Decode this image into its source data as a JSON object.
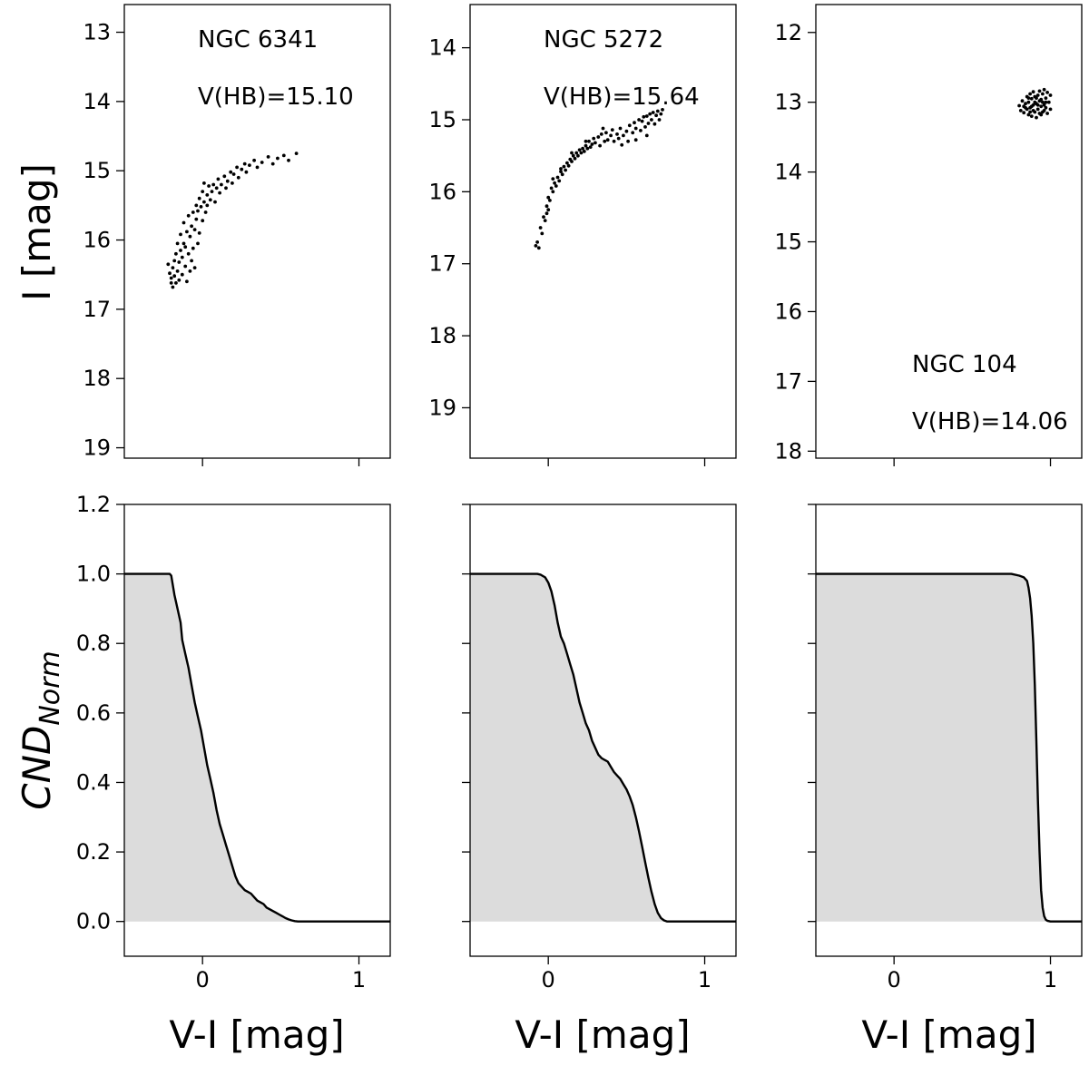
{
  "figure": {
    "ylabel_top": "I [mag]",
    "ylabel_bottom_main": "CND",
    "ylabel_bottom_sub": "Norm",
    "xlabel": "V-I [mag]"
  },
  "chart_data": [
    {
      "type": "scatter",
      "cluster": "NGC 6341",
      "annotation": "V(HB)=15.10",
      "xlim": [
        -0.5,
        1.2
      ],
      "ylim": [
        19.15,
        12.6
      ],
      "y_inverted": true,
      "x_ticks": [
        0,
        1
      ],
      "y_ticks": [
        13,
        14,
        15,
        16,
        17,
        18,
        19
      ],
      "points": [
        [
          -0.22,
          16.35
        ],
        [
          -0.21,
          16.48
        ],
        [
          -0.2,
          16.62
        ],
        [
          -0.2,
          16.55
        ],
        [
          -0.19,
          16.68
        ],
        [
          -0.19,
          16.4
        ],
        [
          -0.18,
          16.52
        ],
        [
          -0.18,
          16.3
        ],
        [
          -0.17,
          16.62
        ],
        [
          -0.17,
          16.2
        ],
        [
          -0.16,
          16.45
        ],
        [
          -0.16,
          16.05
        ],
        [
          -0.15,
          16.58
        ],
        [
          -0.15,
          16.32
        ],
        [
          -0.14,
          16.15
        ],
        [
          -0.14,
          15.92
        ],
        [
          -0.13,
          16.5
        ],
        [
          -0.13,
          16.25
        ],
        [
          -0.12,
          16.05
        ],
        [
          -0.12,
          15.75
        ],
        [
          -0.11,
          16.38
        ],
        [
          -0.11,
          16.1
        ],
        [
          -0.1,
          15.88
        ],
        [
          -0.1,
          16.6
        ],
        [
          -0.09,
          16.2
        ],
        [
          -0.09,
          15.65
        ],
        [
          -0.08,
          16.45
        ],
        [
          -0.08,
          15.95
        ],
        [
          -0.07,
          15.8
        ],
        [
          -0.07,
          16.3
        ],
        [
          -0.06,
          15.6
        ],
        [
          -0.06,
          16.12
        ],
        [
          -0.05,
          15.85
        ],
        [
          -0.05,
          16.4
        ],
        [
          -0.04,
          15.7
        ],
        [
          -0.04,
          15.5
        ],
        [
          -0.03,
          16.05
        ],
        [
          -0.03,
          15.58
        ],
        [
          -0.02,
          15.4
        ],
        [
          -0.02,
          15.9
        ],
        [
          -0.01,
          15.52
        ],
        [
          0.0,
          15.3
        ],
        [
          0.0,
          15.72
        ],
        [
          0.01,
          15.45
        ],
        [
          0.01,
          15.18
        ],
        [
          0.02,
          15.6
        ],
        [
          0.03,
          15.35
        ],
        [
          0.03,
          15.5
        ],
        [
          0.04,
          15.22
        ],
        [
          0.05,
          15.42
        ],
        [
          0.06,
          15.3
        ],
        [
          0.07,
          15.2
        ],
        [
          0.08,
          15.45
        ],
        [
          0.09,
          15.25
        ],
        [
          0.1,
          15.12
        ],
        [
          0.11,
          15.32
        ],
        [
          0.12,
          15.2
        ],
        [
          0.14,
          15.08
        ],
        [
          0.15,
          15.25
        ],
        [
          0.16,
          15.15
        ],
        [
          0.18,
          15.02
        ],
        [
          0.19,
          15.18
        ],
        [
          0.2,
          15.05
        ],
        [
          0.22,
          14.95
        ],
        [
          0.23,
          15.1
        ],
        [
          0.25,
          14.98
        ],
        [
          0.27,
          14.9
        ],
        [
          0.28,
          15.02
        ],
        [
          0.3,
          14.92
        ],
        [
          0.33,
          14.85
        ],
        [
          0.35,
          14.95
        ],
        [
          0.38,
          14.88
        ],
        [
          0.42,
          14.8
        ],
        [
          0.45,
          14.9
        ],
        [
          0.48,
          14.82
        ],
        [
          0.52,
          14.78
        ],
        [
          0.55,
          14.85
        ],
        [
          0.6,
          14.75
        ]
      ]
    },
    {
      "type": "scatter",
      "cluster": "NGC 5272",
      "annotation": "V(HB)=15.64",
      "xlim": [
        -0.5,
        1.2
      ],
      "ylim": [
        19.7,
        13.4
      ],
      "y_inverted": true,
      "x_ticks": [
        0,
        1
      ],
      "y_ticks": [
        14,
        15,
        16,
        17,
        18,
        19
      ],
      "points": [
        [
          -0.08,
          16.75
        ],
        [
          -0.07,
          16.7
        ],
        [
          -0.06,
          16.78
        ],
        [
          -0.05,
          16.5
        ],
        [
          -0.04,
          16.58
        ],
        [
          -0.03,
          16.35
        ],
        [
          -0.02,
          16.4
        ],
        [
          -0.01,
          16.2
        ],
        [
          0.0,
          16.25
        ],
        [
          0.0,
          16.08
        ],
        [
          0.01,
          16.12
        ],
        [
          0.02,
          15.95
        ],
        [
          0.03,
          16.0
        ],
        [
          0.04,
          15.88
        ],
        [
          0.05,
          15.92
        ],
        [
          0.06,
          15.8
        ],
        [
          0.07,
          15.85
        ],
        [
          0.08,
          15.72
        ],
        [
          0.09,
          15.76
        ],
        [
          0.1,
          15.65
        ],
        [
          0.11,
          15.7
        ],
        [
          0.12,
          15.6
        ],
        [
          0.13,
          15.64
        ],
        [
          0.14,
          15.55
        ],
        [
          0.15,
          15.58
        ],
        [
          0.16,
          15.5
        ],
        [
          0.17,
          15.54
        ],
        [
          0.18,
          15.46
        ],
        [
          0.19,
          15.5
        ],
        [
          0.2,
          15.42
        ],
        [
          0.21,
          15.46
        ],
        [
          0.22,
          15.4
        ],
        [
          0.23,
          15.44
        ],
        [
          0.24,
          15.36
        ],
        [
          0.25,
          15.4
        ],
        [
          0.26,
          15.3
        ],
        [
          0.27,
          15.38
        ],
        [
          0.28,
          15.34
        ],
        [
          0.29,
          15.26
        ],
        [
          0.3,
          15.32
        ],
        [
          0.32,
          15.24
        ],
        [
          0.33,
          15.36
        ],
        [
          0.34,
          15.2
        ],
        [
          0.36,
          15.3
        ],
        [
          0.37,
          15.18
        ],
        [
          0.38,
          15.28
        ],
        [
          0.4,
          15.22
        ],
        [
          0.41,
          15.14
        ],
        [
          0.42,
          15.3
        ],
        [
          0.44,
          15.2
        ],
        [
          0.45,
          15.26
        ],
        [
          0.46,
          15.12
        ],
        [
          0.48,
          15.22
        ],
        [
          0.5,
          15.16
        ],
        [
          0.51,
          15.3
        ],
        [
          0.52,
          15.08
        ],
        [
          0.54,
          15.18
        ],
        [
          0.55,
          15.04
        ],
        [
          0.56,
          15.12
        ],
        [
          0.58,
          15.0
        ],
        [
          0.59,
          15.15
        ],
        [
          0.6,
          15.02
        ],
        [
          0.61,
          14.96
        ],
        [
          0.62,
          15.1
        ],
        [
          0.63,
          14.95
        ],
        [
          0.64,
          15.05
        ],
        [
          0.65,
          14.92
        ],
        [
          0.66,
          15.0
        ],
        [
          0.67,
          14.9
        ],
        [
          0.68,
          15.06
        ],
        [
          0.69,
          14.94
        ],
        [
          0.7,
          14.88
        ],
        [
          0.71,
          15.0
        ],
        [
          0.72,
          14.92
        ],
        [
          0.73,
          14.86
        ],
        [
          -0.01,
          16.3
        ],
        [
          0.03,
          15.82
        ],
        [
          0.08,
          15.68
        ],
        [
          0.15,
          15.46
        ],
        [
          0.24,
          15.3
        ],
        [
          0.35,
          15.12
        ],
        [
          0.47,
          15.35
        ],
        [
          0.56,
          15.28
        ],
        [
          0.63,
          15.22
        ]
      ]
    },
    {
      "type": "scatter",
      "cluster": "NGC 104",
      "annotation": "V(HB)=14.06",
      "xlim": [
        -0.5,
        1.2
      ],
      "ylim": [
        18.1,
        11.6
      ],
      "y_inverted": true,
      "x_ticks": [
        0,
        1
      ],
      "y_ticks": [
        12,
        13,
        14,
        15,
        16,
        17,
        18
      ],
      "points": [
        [
          0.8,
          13.05
        ],
        [
          0.81,
          13.12
        ],
        [
          0.82,
          12.98
        ],
        [
          0.83,
          13.15
        ],
        [
          0.84,
          13.02
        ],
        [
          0.85,
          12.92
        ],
        [
          0.85,
          13.1
        ],
        [
          0.86,
          13.18
        ],
        [
          0.86,
          13.0
        ],
        [
          0.87,
          12.88
        ],
        [
          0.87,
          13.08
        ],
        [
          0.88,
          13.2
        ],
        [
          0.88,
          12.95
        ],
        [
          0.89,
          13.04
        ],
        [
          0.89,
          12.85
        ],
        [
          0.9,
          13.14
        ],
        [
          0.9,
          12.92
        ],
        [
          0.91,
          13.02
        ],
        [
          0.91,
          13.22
        ],
        [
          0.92,
          12.9
        ],
        [
          0.92,
          13.1
        ],
        [
          0.93,
          12.98
        ],
        [
          0.93,
          12.84
        ],
        [
          0.94,
          13.06
        ],
        [
          0.94,
          13.18
        ],
        [
          0.95,
          12.88
        ],
        [
          0.95,
          13.0
        ],
        [
          0.96,
          13.12
        ],
        [
          0.96,
          12.82
        ],
        [
          0.97,
          12.94
        ],
        [
          0.97,
          13.08
        ],
        [
          0.98,
          13.16
        ],
        [
          0.98,
          12.86
        ],
        [
          0.99,
          13.0
        ],
        [
          1.0,
          12.9
        ],
        [
          1.0,
          13.1
        ],
        [
          0.84,
          13.08
        ],
        [
          0.86,
          12.94
        ],
        [
          0.88,
          13.06
        ],
        [
          0.9,
          13.0
        ],
        [
          0.92,
          13.04
        ],
        [
          0.94,
          12.96
        ],
        [
          0.96,
          13.04
        ],
        [
          0.87,
          13.14
        ],
        [
          0.91,
          12.94
        ],
        [
          0.95,
          13.14
        ],
        [
          0.83,
          13.06
        ],
        [
          0.89,
          13.12
        ],
        [
          0.93,
          13.16
        ],
        [
          0.97,
          13.0
        ]
      ]
    },
    {
      "type": "area",
      "cluster": "NGC 6341",
      "xlim": [
        -0.5,
        1.2
      ],
      "ylim": [
        -0.1,
        1.2
      ],
      "x_ticks": [
        0,
        1
      ],
      "y_ticks": [
        0.0,
        0.2,
        0.4,
        0.6,
        0.8,
        1.0,
        1.2
      ],
      "x": [
        -0.5,
        -0.21,
        -0.2,
        -0.18,
        -0.16,
        -0.14,
        -0.13,
        -0.11,
        -0.09,
        -0.07,
        -0.05,
        -0.03,
        -0.01,
        0.01,
        0.03,
        0.05,
        0.07,
        0.09,
        0.11,
        0.13,
        0.15,
        0.17,
        0.19,
        0.21,
        0.23,
        0.25,
        0.27,
        0.29,
        0.31,
        0.33,
        0.35,
        0.37,
        0.39,
        0.41,
        0.43,
        0.45,
        0.47,
        0.49,
        0.51,
        0.53,
        0.55,
        0.57,
        0.59,
        0.61,
        1.2
      ],
      "y": [
        1.0,
        1.0,
        0.995,
        0.94,
        0.9,
        0.86,
        0.81,
        0.77,
        0.73,
        0.68,
        0.63,
        0.59,
        0.55,
        0.5,
        0.45,
        0.41,
        0.37,
        0.32,
        0.28,
        0.25,
        0.22,
        0.19,
        0.16,
        0.13,
        0.11,
        0.1,
        0.09,
        0.085,
        0.08,
        0.07,
        0.06,
        0.055,
        0.05,
        0.04,
        0.035,
        0.03,
        0.025,
        0.02,
        0.015,
        0.01,
        0.006,
        0.003,
        0.001,
        0.0,
        0.0
      ]
    },
    {
      "type": "area",
      "cluster": "NGC 5272",
      "xlim": [
        -0.5,
        1.2
      ],
      "ylim": [
        -0.1,
        1.2
      ],
      "x_ticks": [
        0,
        1
      ],
      "y_ticks": [
        0.0,
        0.2,
        0.4,
        0.6,
        0.8,
        1.0,
        1.2
      ],
      "x": [
        -0.5,
        -0.07,
        -0.05,
        -0.02,
        0.0,
        0.02,
        0.04,
        0.06,
        0.08,
        0.1,
        0.12,
        0.14,
        0.16,
        0.18,
        0.2,
        0.22,
        0.24,
        0.26,
        0.28,
        0.3,
        0.32,
        0.34,
        0.36,
        0.38,
        0.4,
        0.42,
        0.44,
        0.46,
        0.48,
        0.5,
        0.52,
        0.54,
        0.56,
        0.58,
        0.6,
        0.62,
        0.64,
        0.66,
        0.68,
        0.7,
        0.72,
        0.74,
        0.76,
        1.2
      ],
      "y": [
        1.0,
        1.0,
        0.998,
        0.99,
        0.975,
        0.95,
        0.91,
        0.86,
        0.82,
        0.8,
        0.77,
        0.74,
        0.71,
        0.67,
        0.63,
        0.6,
        0.57,
        0.55,
        0.52,
        0.5,
        0.48,
        0.47,
        0.465,
        0.46,
        0.445,
        0.43,
        0.42,
        0.41,
        0.395,
        0.38,
        0.36,
        0.335,
        0.3,
        0.26,
        0.215,
        0.17,
        0.125,
        0.085,
        0.05,
        0.025,
        0.01,
        0.003,
        0.0,
        0.0
      ]
    },
    {
      "type": "area",
      "cluster": "NGC 104",
      "xlim": [
        -0.5,
        1.2
      ],
      "ylim": [
        -0.1,
        1.2
      ],
      "x_ticks": [
        0,
        1
      ],
      "y_ticks": [
        0.0,
        0.2,
        0.4,
        0.6,
        0.8,
        1.0,
        1.2
      ],
      "x": [
        -0.5,
        0.75,
        0.8,
        0.83,
        0.85,
        0.86,
        0.87,
        0.88,
        0.89,
        0.9,
        0.91,
        0.92,
        0.93,
        0.94,
        0.95,
        0.96,
        0.97,
        0.98,
        1.0,
        1.2
      ],
      "y": [
        1.0,
        1.0,
        0.995,
        0.99,
        0.98,
        0.96,
        0.93,
        0.88,
        0.8,
        0.68,
        0.52,
        0.35,
        0.2,
        0.09,
        0.04,
        0.015,
        0.005,
        0.002,
        0.0,
        0.0
      ]
    }
  ]
}
